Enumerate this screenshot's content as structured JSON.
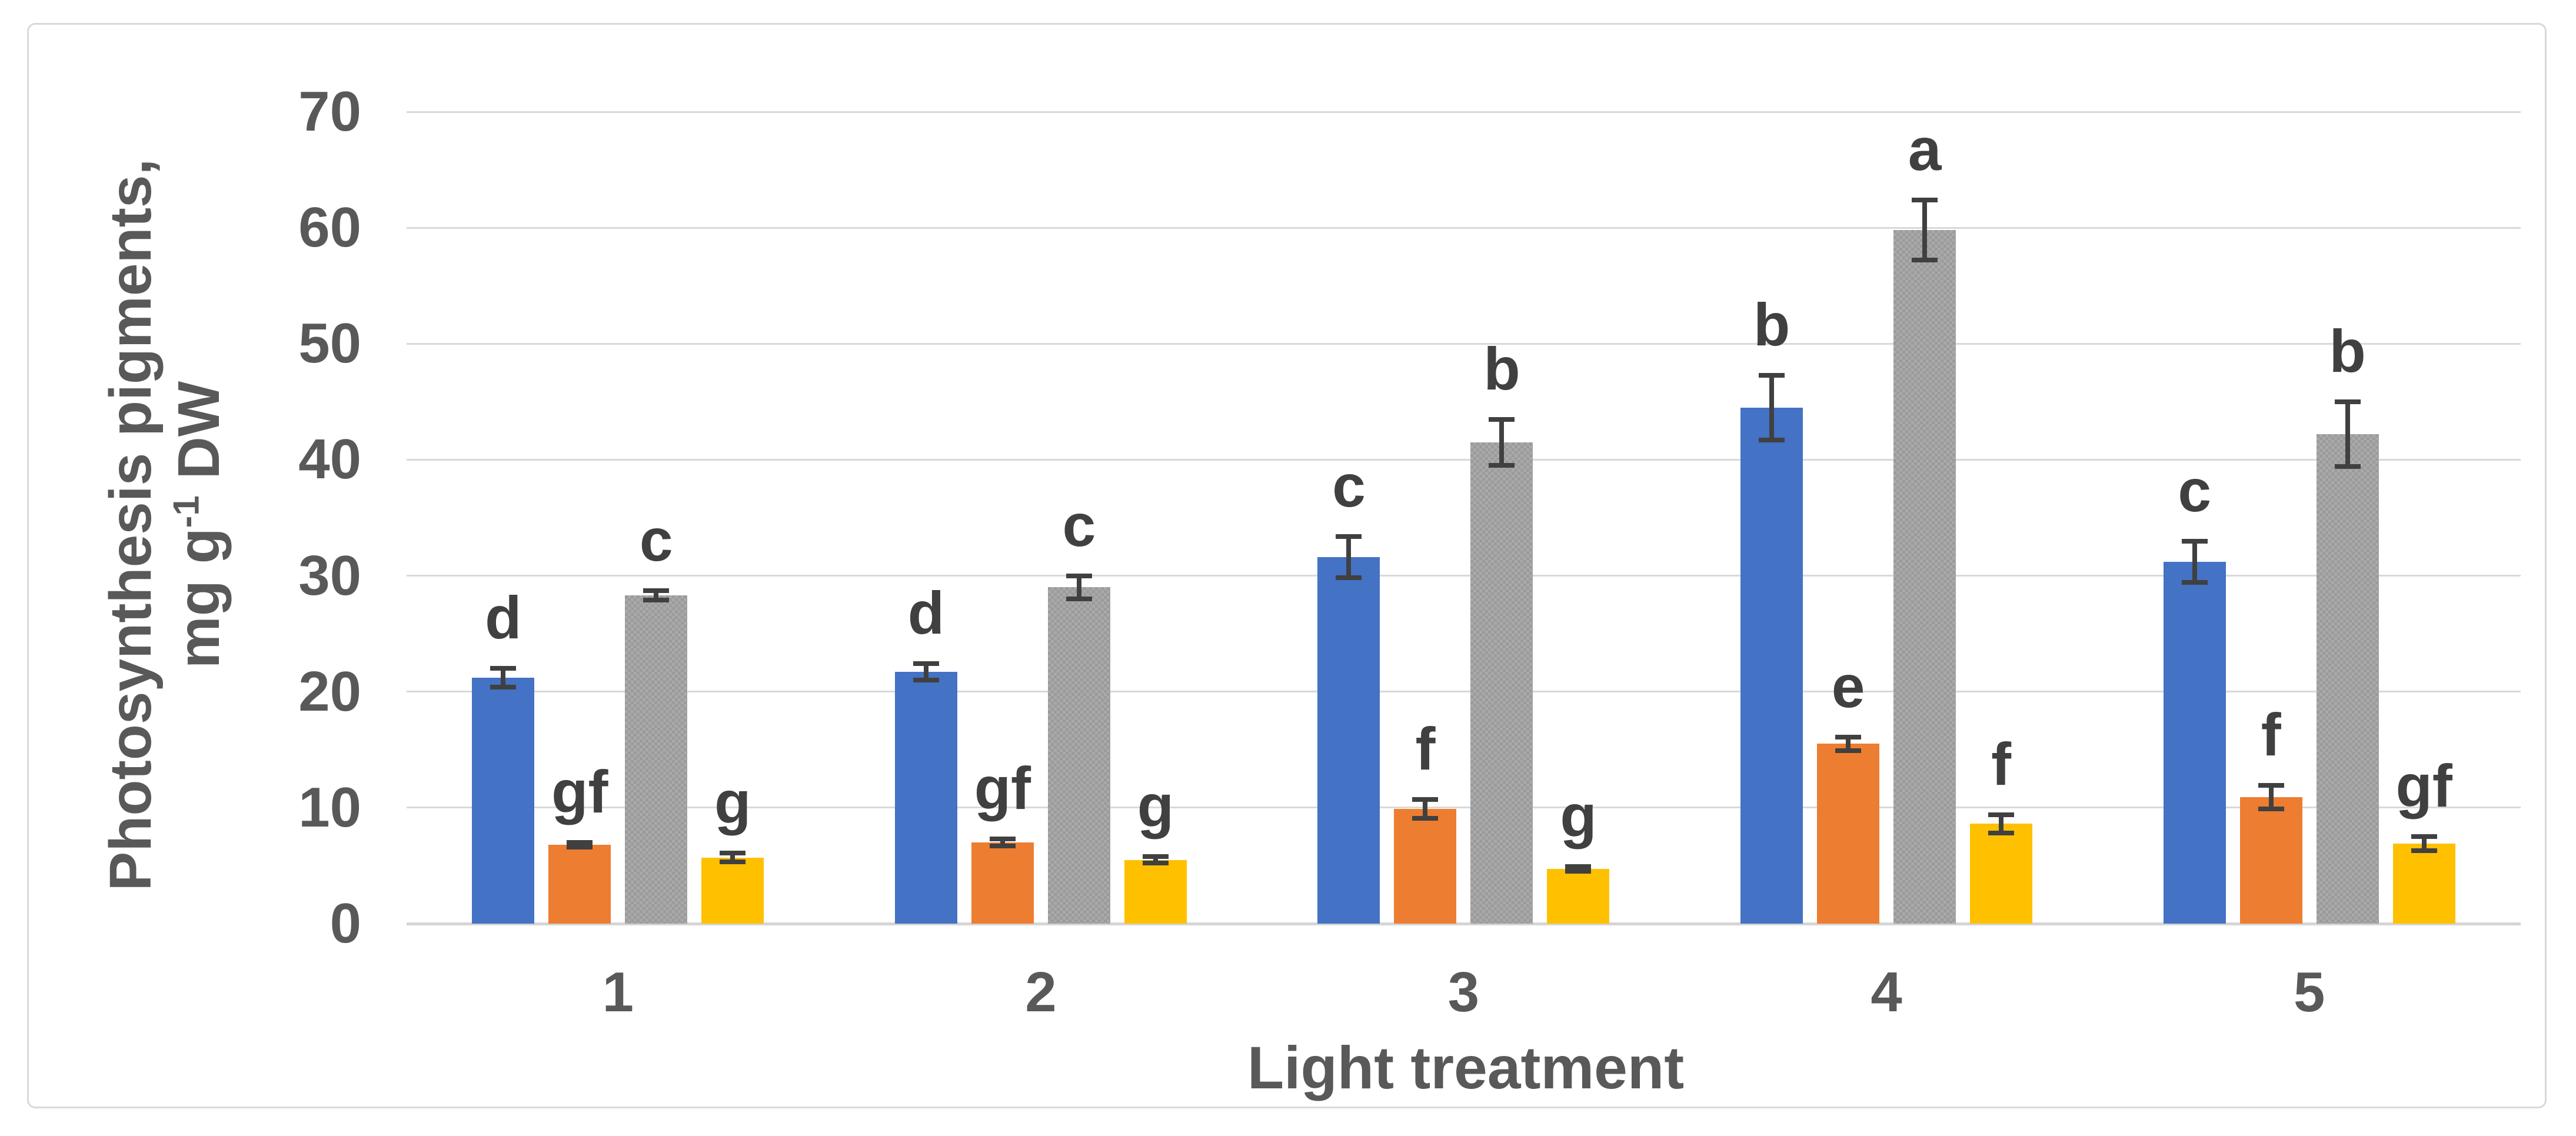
{
  "figure": {
    "border_color": "#D9D9D9",
    "background": "#ffffff"
  },
  "axes": {
    "x_title": "Light treatment",
    "y_title_line1": "Photosynthesis pigments,",
    "y_title_line2_pre": "mg g",
    "y_title_line2_sup": "-1",
    "y_title_line2_post": " DW",
    "text_color": "#595959",
    "letter_color": "#404040",
    "gridline_color": "#D9D9D9"
  },
  "chart_data": {
    "type": "bar",
    "title": "",
    "xlabel": "Light treatment",
    "ylabel": "Photosynthesis pigments, mg g-1 DW",
    "categories": [
      "1",
      "2",
      "3",
      "4",
      "5"
    ],
    "ylim": [
      0,
      70
    ],
    "yticks": [
      "0",
      "10",
      "20",
      "30",
      "40",
      "50",
      "60",
      "70"
    ],
    "grid": true,
    "legend": "none",
    "error_bars": true,
    "series": [
      {
        "name": "series-blue",
        "color": "#4472C4",
        "values": [
          21.2,
          21.7,
          31.6,
          44.5,
          31.2
        ],
        "errors": [
          1.0,
          0.9,
          2.0,
          3.0,
          2.0
        ],
        "letters": [
          "d",
          "d",
          "c",
          "b",
          "c"
        ]
      },
      {
        "name": "series-orange",
        "color": "#ED7D31",
        "values": [
          6.8,
          7.0,
          9.9,
          15.5,
          10.9
        ],
        "errors": [
          0.4,
          0.5,
          1.0,
          0.8,
          1.2
        ],
        "letters": [
          "gf",
          "gf",
          "f",
          "e",
          "f"
        ]
      },
      {
        "name": "series-gray-patterned",
        "color": "#A9A9A9",
        "pattern_color": "#9B9B9B",
        "pattern": "checker",
        "values": [
          28.3,
          29.0,
          41.5,
          59.8,
          42.2
        ],
        "errors": [
          0.6,
          1.2,
          2.2,
          2.8,
          3.0
        ],
        "letters": [
          "c",
          "c",
          "b",
          "a",
          "b"
        ]
      },
      {
        "name": "series-yellow",
        "color": "#FFC000",
        "values": [
          5.7,
          5.5,
          4.7,
          8.6,
          6.9
        ],
        "errors": [
          0.6,
          0.5,
          0.4,
          1.0,
          0.8
        ],
        "letters": [
          "g",
          "g",
          "g",
          "f",
          "gf"
        ]
      }
    ]
  }
}
